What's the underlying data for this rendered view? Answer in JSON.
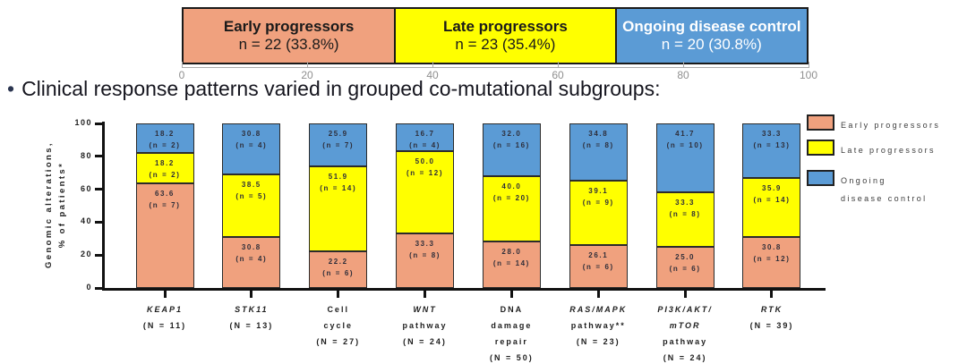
{
  "figure": {
    "bullet": "•",
    "bullet_text": "Clinical response patterns varied in grouped co-mutational subgroups:"
  },
  "chart_data": [
    {
      "type": "bar",
      "subtype": "single-100pct-stacked-horizontal",
      "title": "",
      "xlim": [
        0,
        100
      ],
      "xticks": [
        0,
        20,
        40,
        60,
        80,
        100
      ],
      "segments": [
        {
          "label": "Early progressors",
          "sub_label": "n = 22 (33.8%)",
          "value_pct": 33.8,
          "n": 22,
          "color": "#F0A17E",
          "text_color": "#1a1a1a"
        },
        {
          "label": "Late progressors",
          "sub_label": "n = 23 (35.4%)",
          "value_pct": 35.4,
          "n": 23,
          "color": "#FFFF00",
          "text_color": "#1a1a1a"
        },
        {
          "label": "Ongoing disease control",
          "sub_label": "n = 20 (30.8%)",
          "value_pct": 30.8,
          "n": 20,
          "color": "#5B9BD5",
          "text_color": "#FFFFFF"
        }
      ]
    },
    {
      "type": "bar",
      "subtype": "100pct-stacked-vertical",
      "title": "",
      "ylabel_line1": "Genomic alterations,",
      "ylabel_line2": "% of patients*",
      "ylim": [
        0,
        100
      ],
      "yticks": [
        0,
        20,
        40,
        60,
        80,
        100
      ],
      "grid": false,
      "categories": [
        {
          "name": "KEAP1 (N = 11)",
          "total_n": 11,
          "lines": [
            {
              "text": "KEAP1",
              "italic": true
            },
            {
              "text": "(N = 11)",
              "italic": false
            }
          ]
        },
        {
          "name": "STK11 (N = 13)",
          "total_n": 13,
          "lines": [
            {
              "text": "STK11",
              "italic": true
            },
            {
              "text": "(N = 13)",
              "italic": false
            }
          ]
        },
        {
          "name": "Cell cycle (N = 27)",
          "total_n": 27,
          "lines": [
            {
              "text": "Cell",
              "italic": false
            },
            {
              "text": "cycle",
              "italic": false
            },
            {
              "text": "(N = 27)",
              "italic": false
            }
          ]
        },
        {
          "name": "WNT pathway (N = 24)",
          "total_n": 24,
          "lines": [
            {
              "text": "WNT",
              "italic": true
            },
            {
              "text": "pathway",
              "italic": false
            },
            {
              "text": "(N = 24)",
              "italic": false
            }
          ]
        },
        {
          "name": "DNA damage repair (N = 50)",
          "total_n": 50,
          "lines": [
            {
              "text": "DNA",
              "italic": false
            },
            {
              "text": "damage",
              "italic": false
            },
            {
              "text": "repair",
              "italic": false
            },
            {
              "text": "(N = 50)",
              "italic": false
            }
          ]
        },
        {
          "name": "RAS/MAPK pathway** (N = 23)",
          "total_n": 23,
          "lines": [
            {
              "text": "RAS/MAPK",
              "italic": true
            },
            {
              "text": "pathway**",
              "italic": false
            },
            {
              "text": "(N = 23)",
              "italic": false
            }
          ]
        },
        {
          "name": "PI3K/AKT/mTOR pathway (N = 24)",
          "total_n": 24,
          "lines": [
            {
              "text": "PI3K/AKT/",
              "italic": true
            },
            {
              "text": "mTOR",
              "italic": true
            },
            {
              "text": "pathway",
              "italic": false
            },
            {
              "text": "(N = 24)",
              "italic": false
            }
          ]
        },
        {
          "name": "RTK (N = 39)",
          "total_n": 39,
          "lines": [
            {
              "text": "RTK",
              "italic": true
            },
            {
              "text": "(N = 39)",
              "italic": false
            }
          ]
        }
      ],
      "series": [
        {
          "name": "Early progressors",
          "color": "#F0A17E",
          "values": [
            63.6,
            30.8,
            22.2,
            33.3,
            28.0,
            26.1,
            25.0,
            30.8
          ],
          "counts": [
            7,
            4,
            6,
            8,
            14,
            6,
            6,
            12
          ]
        },
        {
          "name": "Late progressors",
          "color": "#FFFF00",
          "values": [
            18.2,
            38.5,
            51.9,
            50.0,
            40.0,
            39.1,
            33.3,
            35.9
          ],
          "counts": [
            2,
            5,
            14,
            12,
            20,
            9,
            8,
            14
          ]
        },
        {
          "name": "Ongoing disease control",
          "color": "#5B9BD5",
          "values": [
            18.2,
            30.8,
            25.9,
            16.7,
            32.0,
            34.8,
            41.7,
            33.3
          ],
          "counts": [
            2,
            4,
            7,
            4,
            16,
            8,
            10,
            13
          ]
        }
      ],
      "legend": {
        "position": "right",
        "items": [
          {
            "color": "#F0A17E",
            "lines": [
              "Early progressors"
            ]
          },
          {
            "color": "#FFFF00",
            "lines": [
              "Late progressors"
            ]
          },
          {
            "color": "#5B9BD5",
            "lines": [
              "Ongoing",
              "disease control"
            ]
          }
        ]
      }
    }
  ]
}
